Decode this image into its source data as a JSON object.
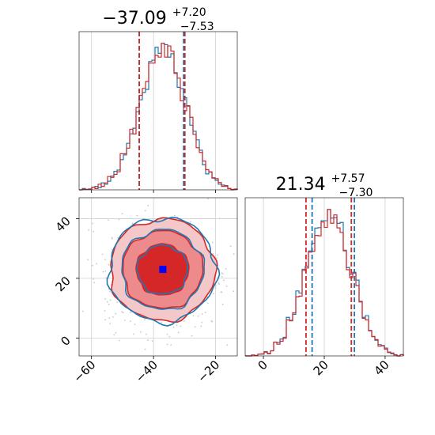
{
  "chart_data": {
    "type": "corner",
    "parameters": [
      {
        "title_value": "−37.09",
        "title_upper": "+7.20",
        "title_lower": "−7.53",
        "median": -37.09,
        "quantile_low": -44.62,
        "quantile_high": -29.89
      },
      {
        "title_value": "21.34",
        "title_upper": "+7.57",
        "title_lower": "−7.30",
        "median": 21.34,
        "quantile_low": 14.04,
        "quantile_high": 28.91
      }
    ],
    "x_axis_param1": {
      "range": [
        -64,
        -13
      ],
      "ticks": [
        -60,
        -40,
        -20
      ],
      "tick_labels": [
        "−60",
        "−40",
        "−20"
      ]
    },
    "y_axis_param2": {
      "range": [
        -6,
        47
      ],
      "ticks": [
        0,
        20,
        40
      ],
      "tick_labels": [
        "0",
        "20",
        "40"
      ]
    },
    "x_axis_param2": {
      "range": [
        -6,
        46
      ],
      "ticks": [
        0,
        20,
        40
      ],
      "tick_labels": [
        "0",
        "20",
        "40"
      ]
    },
    "series": [
      {
        "color": "#1f77b4",
        "quantile_low_param1": -44.6,
        "quantile_high_param1": -30.3,
        "quantile_low_param2": 16.0,
        "quantile_high_param2": 29.9
      },
      {
        "color": "#d62728",
        "quantile_low_param1": -44.6,
        "quantile_high_param1": -29.9,
        "quantile_low_param2": 14.0,
        "quantile_high_param2": 28.9
      }
    ],
    "truth_marker": {
      "param1": -37.0,
      "param2": 23.0,
      "color": "#0000ff"
    },
    "grid": true
  }
}
